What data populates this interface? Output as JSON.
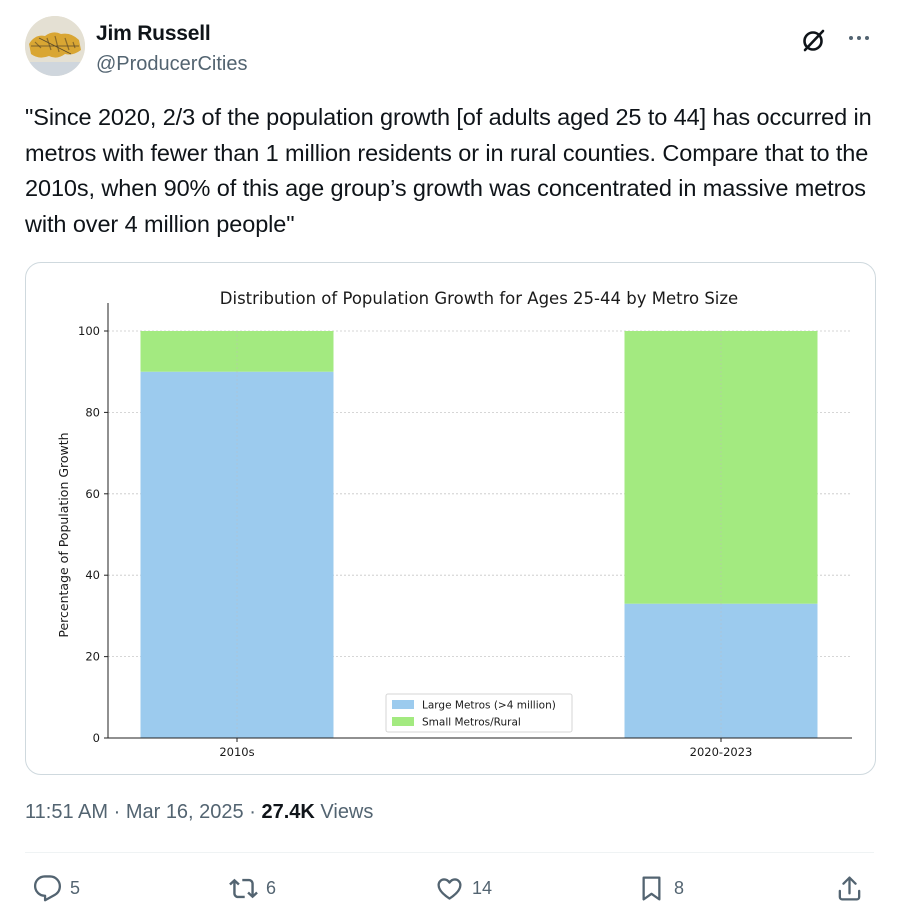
{
  "author": {
    "name": "Jim Russell",
    "handle": "@ProducerCities"
  },
  "tweet": {
    "text": "\"Since 2020, 2/3 of the population growth [of adults aged 25 to 44] has occurred in metros with fewer than 1 million residents or in rural counties. Compare that to the 2010s, when 90% of this age group’s growth was concentrated in massive metros with over 4 million people\""
  },
  "icons": {
    "grok": "grok-icon",
    "more": "more-icon",
    "reply": "reply-icon",
    "retweet": "retweet-icon",
    "like": "like-icon",
    "bookmark": "bookmark-icon",
    "share": "share-icon"
  },
  "chart_data": {
    "type": "bar",
    "stacked": true,
    "title": "Distribution of Population Growth for Ages 25-44 by Metro Size",
    "xlabel": "",
    "ylabel": "Percentage of Population Growth",
    "categories": [
      "2010s",
      "2020-2023"
    ],
    "series": [
      {
        "name": "Large Metros (>4 million)",
        "values": [
          90,
          33
        ],
        "color": "#9ccbee"
      },
      {
        "name": "Small Metros/Rural",
        "values": [
          10,
          67
        ],
        "color": "#a3ea80"
      }
    ],
    "ylim": [
      0,
      100
    ],
    "yticks": [
      "0",
      "20",
      "40",
      "60",
      "80",
      "100"
    ],
    "grid": true,
    "legend": "bottom-center"
  },
  "meta": {
    "time": "11:51 AM",
    "date": "Mar 16, 2025",
    "views_count": "27.4K",
    "views_label": "Views"
  },
  "actions": {
    "replies": "5",
    "retweets": "6",
    "likes": "14",
    "bookmarks": "8"
  }
}
